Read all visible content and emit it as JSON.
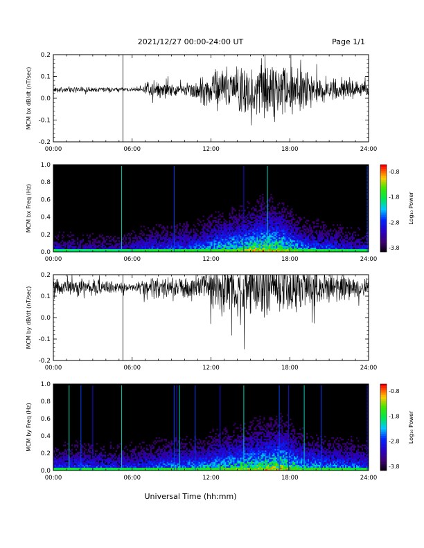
{
  "header": {
    "title": "2021/12/27  00:00-24:00 UT",
    "page": "Page 1/1"
  },
  "xaxis_title": "Universal Time (hh:mm)",
  "chart_data": [
    {
      "id": "p1",
      "type": "line",
      "ylabel": "MCM bx dB/dt (nT/sec)",
      "xlim": [
        0,
        24
      ],
      "ylim": [
        -0.2,
        0.2
      ],
      "xticks": [
        "00:00",
        "06:00",
        "12:00",
        "18:00",
        "24:00"
      ],
      "yticks": [
        "0.2",
        "0.1",
        "0.0",
        "-0.1",
        "-0.2"
      ],
      "baseline": 0.04,
      "spikes": [
        5.3
      ],
      "activity_envelope": {
        "hours": [
          0,
          2,
          4,
          5.5,
          6.8,
          7.0,
          8.5,
          9.5,
          11,
          12.2,
          13,
          14.5,
          15.5,
          17,
          18,
          19,
          20,
          21,
          22.5,
          24
        ],
        "amplitude": [
          0.015,
          0.015,
          0.012,
          0.01,
          0.012,
          0.04,
          0.05,
          0.025,
          0.06,
          0.12,
          0.11,
          0.16,
          0.15,
          0.16,
          0.14,
          0.12,
          0.08,
          0.06,
          0.05,
          0.04
        ]
      }
    },
    {
      "id": "p2",
      "type": "heatmap",
      "ylabel": "MCM bx Freq (Hz)",
      "xlim": [
        0,
        24
      ],
      "ylim": [
        0,
        1.0
      ],
      "xticks": [
        "00:00",
        "06:00",
        "12:00",
        "18:00",
        "24:00"
      ],
      "yticks": [
        "1.0",
        "0.8",
        "0.6",
        "0.4",
        "0.2",
        "0.0"
      ],
      "colorbar_label": "Log₁₀ Power",
      "colorbar_ticks": [
        "-0.8",
        "-1.8",
        "-2.8",
        "-3.8"
      ],
      "power_range": [
        -3.8,
        -0.8
      ],
      "vertical_lines": [
        5.2,
        9.2,
        14.5,
        16.3,
        23.9
      ],
      "activity": {
        "hours": [
          0,
          2,
          5,
          7,
          9,
          11,
          12.5,
          14.5,
          16,
          17.5,
          19,
          21,
          23,
          24
        ],
        "level": [
          0.35,
          0.3,
          0.3,
          0.45,
          0.5,
          0.55,
          0.7,
          0.8,
          0.9,
          0.85,
          0.6,
          0.5,
          0.4,
          0.4
        ]
      }
    },
    {
      "id": "p3",
      "type": "line",
      "ylabel": "MCM by dB/dt (nT/sec)",
      "xlim": [
        0,
        24
      ],
      "ylim": [
        -0.2,
        0.2
      ],
      "xticks": [
        "00:00",
        "06:00",
        "12:00",
        "18:00",
        "24:00"
      ],
      "yticks": [
        "0.2",
        "0.1",
        "0.0",
        "-0.1",
        "-0.2"
      ],
      "baseline": 0.14,
      "spikes": [
        5.3
      ],
      "activity_envelope": {
        "hours": [
          0,
          2,
          4,
          5,
          6,
          7,
          8.5,
          9.5,
          11,
          12.5,
          13.5,
          14.5,
          15.5,
          17,
          18,
          19.5,
          21,
          22.5,
          24
        ],
        "amplitude": [
          0.04,
          0.05,
          0.04,
          0.03,
          0.02,
          0.05,
          0.06,
          0.05,
          0.08,
          0.14,
          0.15,
          0.2,
          0.18,
          0.17,
          0.16,
          0.12,
          0.08,
          0.06,
          0.05
        ]
      }
    },
    {
      "id": "p4",
      "type": "heatmap",
      "ylabel": "MCM by Freq (Hz)",
      "xlim": [
        0,
        24
      ],
      "ylim": [
        0,
        1.0
      ],
      "xticks": [
        "00:00",
        "06:00",
        "12:00",
        "18:00",
        "24:00"
      ],
      "yticks": [
        "1.0",
        "0.8",
        "0.6",
        "0.4",
        "0.2",
        "0.0"
      ],
      "colorbar_label": "Log₁₀ Power",
      "colorbar_ticks": [
        "-0.8",
        "-1.8",
        "-2.8",
        "-3.8"
      ],
      "power_range": [
        -3.8,
        -0.8
      ],
      "vertical_lines": [
        1.2,
        2.1,
        3.0,
        5.2,
        9.2,
        9.4,
        9.6,
        10.8,
        12.7,
        14.5,
        17.2,
        17.9,
        19.1,
        20.4,
        23.9
      ],
      "activity": {
        "hours": [
          0,
          2,
          5,
          7,
          9,
          11,
          12.5,
          14.5,
          16,
          17.5,
          19,
          21,
          23,
          24
        ],
        "level": [
          0.45,
          0.5,
          0.45,
          0.5,
          0.6,
          0.6,
          0.7,
          0.8,
          0.85,
          0.9,
          0.7,
          0.6,
          0.55,
          0.5
        ]
      }
    }
  ]
}
